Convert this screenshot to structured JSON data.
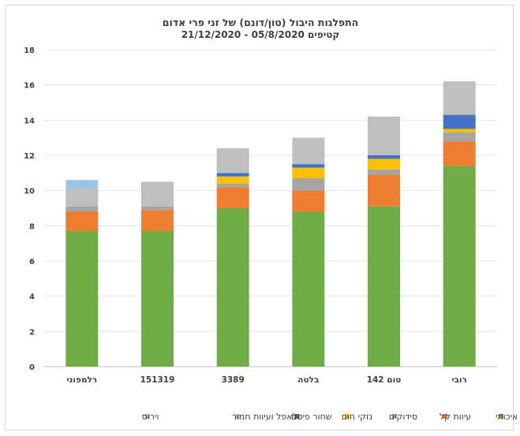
{
  "chart_data": {
    "type": "bar",
    "stacked": true,
    "title": "התפלגות היבול (טון/דונם) של זני פרי אדום",
    "subtitle": "קטיפים 05/8/2020 - 21/12/2020",
    "xlabel": "",
    "ylabel": "",
    "ylim": [
      0,
      18
    ],
    "yticks": [
      0,
      2,
      4,
      6,
      8,
      10,
      12,
      14,
      16,
      18
    ],
    "grid": true,
    "legend_position": "bottom",
    "categories": [
      "רלמפוני",
      "151319",
      "3389",
      "בלטה",
      "טום 142",
      "רובי"
    ],
    "series": [
      {
        "name": "מש איכותי",
        "color": "#70ad47",
        "values": [
          7.7,
          7.7,
          9.0,
          8.8,
          9.1,
          11.4
        ]
      },
      {
        "name": "עיוות קל",
        "color": "#ed7d31",
        "values": [
          1.1,
          1.2,
          1.2,
          1.2,
          1.8,
          1.4
        ]
      },
      {
        "name": "סידוקים",
        "color": "#a5a5a5",
        "values": [
          0.3,
          0.2,
          0.2,
          0.7,
          0.3,
          0.5
        ]
      },
      {
        "name": "נזקי חום",
        "color": "#ffc000",
        "values": [
          0.0,
          0.0,
          0.4,
          0.6,
          0.6,
          0.2
        ]
      },
      {
        "name": "שחור פיטם",
        "color": "#4472c4",
        "values": [
          0.0,
          0.0,
          0.2,
          0.2,
          0.2,
          0.8
        ]
      },
      {
        "name": "פלאפל ועיוות חמור",
        "color": "#bfbfbf",
        "values": [
          1.0,
          1.4,
          1.4,
          1.5,
          2.2,
          1.9
        ]
      },
      {
        "name": "וירוס",
        "color": "#9dc3e6",
        "values": [
          0.5,
          0.0,
          0.0,
          0.0,
          0.0,
          0.0
        ]
      }
    ]
  }
}
